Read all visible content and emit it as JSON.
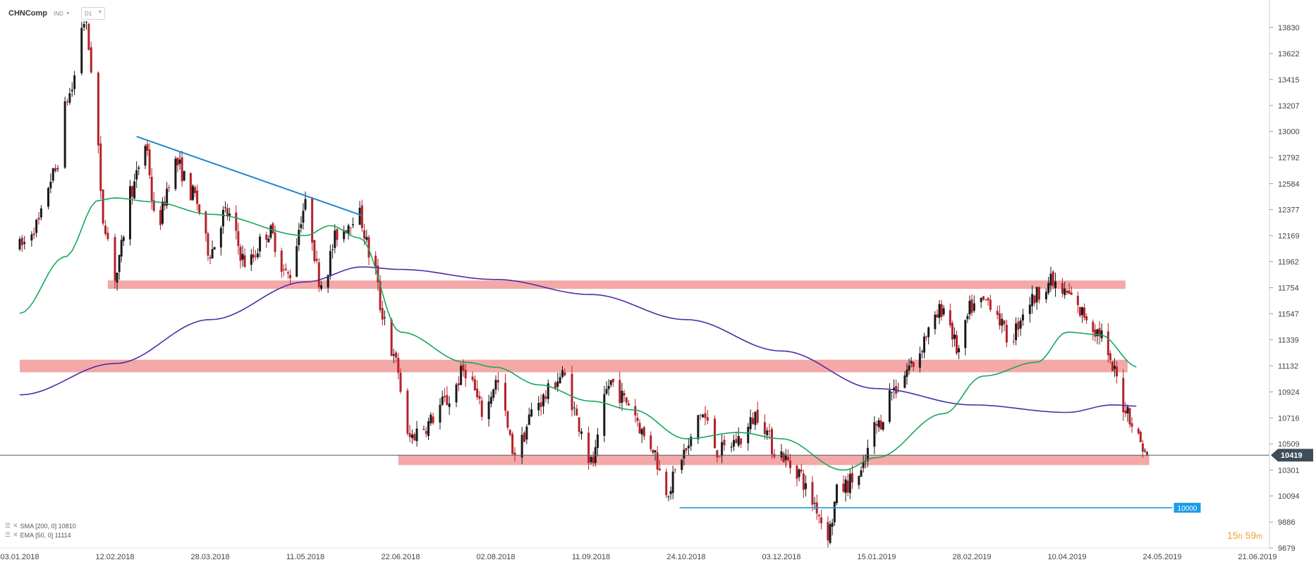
{
  "header": {
    "symbol": "CHNComp",
    "instrument_type": "IND",
    "timeframe": "D1"
  },
  "indicators": [
    {
      "text": "SMA [200, 0] 10810",
      "color": "#4b2fa3"
    },
    {
      "text": "EMA [50, 0] 11114",
      "color": "#17a85d"
    }
  ],
  "countdown": {
    "hours": "15",
    "h_unit": "h",
    "minutes": "59",
    "m_unit": "m",
    "color": "#f0a030"
  },
  "chart_data": {
    "type": "candlestick",
    "title": "",
    "x_tick_labels": [
      "03.01.2018",
      "12.02.2018",
      "28.03.2018",
      "11.05.2018",
      "22.06.2018",
      "02.08.2018",
      "11.09.2018",
      "24.10.2018",
      "03.12.2018",
      "15.01.2019",
      "28.02.2019",
      "10.04.2019",
      "24.05.2019",
      "21.06.2019"
    ],
    "y_tick_labels": [
      13830,
      13622,
      13415,
      13207,
      13000,
      12792,
      12584,
      12377,
      12169,
      11962,
      11754,
      11547,
      11339,
      11132,
      10924,
      10716,
      10509,
      10301,
      10094,
      9886,
      9679
    ],
    "ylim": [
      9679,
      13880
    ],
    "last_price": {
      "value": 10419,
      "label": "10419"
    },
    "candle_colors": {
      "up": "#1a1a1a",
      "down": "#b3222b"
    },
    "price_path_anchors": [
      [
        "03.01.2018",
        12080
      ],
      [
        "10.01.2018",
        12250
      ],
      [
        "17.01.2018",
        12650
      ],
      [
        "24.01.2018",
        13300
      ],
      [
        "30.01.2018",
        13880
      ],
      [
        "03.02.2018",
        13450
      ],
      [
        "07.02.2018",
        12300
      ],
      [
        "12.02.2018",
        11850
      ],
      [
        "20.02.2018",
        12550
      ],
      [
        "26.02.2018",
        12900
      ],
      [
        "03.03.2018",
        12250
      ],
      [
        "12.03.2018",
        12750
      ],
      [
        "20.03.2018",
        12500
      ],
      [
        "28.03.2018",
        12050
      ],
      [
        "04.04.2018",
        12350
      ],
      [
        "14.04.2018",
        11950
      ],
      [
        "24.04.2018",
        12200
      ],
      [
        "03.05.2018",
        11850
      ],
      [
        "11.05.2018",
        12400
      ],
      [
        "18.05.2018",
        11800
      ],
      [
        "26.05.2018",
        12200
      ],
      [
        "03.06.2018",
        12350
      ],
      [
        "10.06.2018",
        11950
      ],
      [
        "14.06.2018",
        11550
      ],
      [
        "20.06.2018",
        11150
      ],
      [
        "25.06.2018",
        10550
      ],
      [
        "02.07.2018",
        10650
      ],
      [
        "12.07.2018",
        10850
      ],
      [
        "20.07.2018",
        11100
      ],
      [
        "28.07.2018",
        10750
      ],
      [
        "02.08.2018",
        11000
      ],
      [
        "10.08.2018",
        10450
      ],
      [
        "20.08.2018",
        10850
      ],
      [
        "30.08.2018",
        11050
      ],
      [
        "07.09.2018",
        10650
      ],
      [
        "11.09.2018",
        10350
      ],
      [
        "20.09.2018",
        11000
      ],
      [
        "27.09.2018",
        10850
      ],
      [
        "08.10.2018",
        10500
      ],
      [
        "15.10.2018",
        10150
      ],
      [
        "24.10.2018",
        10450
      ],
      [
        "30.10.2018",
        10750
      ],
      [
        "07.11.2018",
        10450
      ],
      [
        "16.11.2018",
        10550
      ],
      [
        "23.11.2018",
        10750
      ],
      [
        "01.12.2018",
        10450
      ],
      [
        "10.12.2018",
        10300
      ],
      [
        "17.12.2018",
        10050
      ],
      [
        "24.12.2018",
        9800
      ],
      [
        "29.12.2018",
        10150
      ],
      [
        "07.01.2019",
        10250
      ],
      [
        "15.01.2019",
        10650
      ],
      [
        "23.01.2019",
        10950
      ],
      [
        "01.02.2019",
        11150
      ],
      [
        "08.02.2019",
        11400
      ],
      [
        "15.02.2019",
        11600
      ],
      [
        "22.02.2019",
        11250
      ],
      [
        "28.02.2019",
        11600
      ],
      [
        "08.03.2019",
        11650
      ],
      [
        "16.03.2019",
        11350
      ],
      [
        "25.03.2019",
        11650
      ],
      [
        "02.04.2019",
        11800
      ],
      [
        "10.04.2019",
        11700
      ],
      [
        "17.04.2019",
        11550
      ],
      [
        "25.04.2019",
        11400
      ],
      [
        "01.05.2019",
        11100
      ],
      [
        "07.05.2019",
        10800
      ],
      [
        "13.05.2019",
        10550
      ],
      [
        "17.05.2019",
        10419
      ]
    ],
    "sma200_anchors": [
      [
        "03.01.2018",
        10900
      ],
      [
        "12.02.2018",
        11150
      ],
      [
        "28.03.2018",
        11500
      ],
      [
        "11.05.2018",
        11800
      ],
      [
        "05.06.2018",
        11920
      ],
      [
        "22.06.2018",
        11900
      ],
      [
        "02.08.2018",
        11820
      ],
      [
        "11.09.2018",
        11700
      ],
      [
        "24.10.2018",
        11500
      ],
      [
        "03.12.2018",
        11250
      ],
      [
        "15.01.2019",
        10950
      ],
      [
        "28.02.2019",
        10820
      ],
      [
        "10.04.2019",
        10760
      ],
      [
        "01.05.2019",
        10820
      ],
      [
        "13.05.2019",
        10810
      ]
    ],
    "ema50_anchors": [
      [
        "03.01.2018",
        11550
      ],
      [
        "22.01.2018",
        12000
      ],
      [
        "05.02.2018",
        12450
      ],
      [
        "12.02.2018",
        12470
      ],
      [
        "01.03.2018",
        12440
      ],
      [
        "28.03.2018",
        12340
      ],
      [
        "11.05.2018",
        12170
      ],
      [
        "22.05.2018",
        12250
      ],
      [
        "04.06.2018",
        12150
      ],
      [
        "22.06.2018",
        11400
      ],
      [
        "20.07.2018",
        11160
      ],
      [
        "02.08.2018",
        11120
      ],
      [
        "20.08.2018",
        10980
      ],
      [
        "11.09.2018",
        10850
      ],
      [
        "30.09.2018",
        10780
      ],
      [
        "24.10.2018",
        10550
      ],
      [
        "15.11.2018",
        10600
      ],
      [
        "03.12.2018",
        10550
      ],
      [
        "31.12.2018",
        10300
      ],
      [
        "15.01.2019",
        10400
      ],
      [
        "15.02.2019",
        10750
      ],
      [
        "05.03.2019",
        11050
      ],
      [
        "28.03.2019",
        11160
      ],
      [
        "10.04.2019",
        11400
      ],
      [
        "25.04.2019",
        11380
      ],
      [
        "13.05.2019",
        11120
      ]
    ],
    "annotations": {
      "resistance_zones": [
        {
          "from": "09.02.2018",
          "to": "07.05.2019",
          "low": 11745,
          "high": 11812,
          "color": "#f3a3a3"
        },
        {
          "from": "03.01.2018",
          "to": "08.05.2019",
          "low": 11080,
          "high": 11180,
          "color": "#f3a3a3"
        },
        {
          "from": "21.06.2018",
          "to": "18.05.2019",
          "low": 10340,
          "high": 10420,
          "color": "#f3a3a3"
        }
      ],
      "trendline": {
        "from": [
          "22.02.2018",
          12960
        ],
        "to": [
          "05.06.2018",
          12330
        ],
        "color": "#1e88c8"
      },
      "support_line": {
        "from": "21.10.2018",
        "to": "27.05.2019",
        "value": 10000,
        "label": "10000",
        "color": "#1e9be8"
      }
    }
  }
}
